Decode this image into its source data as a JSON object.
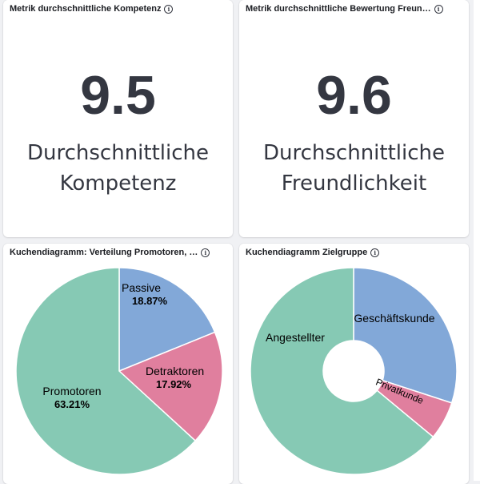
{
  "panels": {
    "metric_competence": {
      "title": "Metrik durchschnittliche Kompetenz",
      "value": "9.5",
      "label_line1": "Durchschnittliche",
      "label_line2": "Kompetenz"
    },
    "metric_friendliness": {
      "title": "Metrik durchschnittliche Bewertung Freun…",
      "value": "9.6",
      "label_line1": "Durchschnittliche",
      "label_line2": "Freundlichkeit"
    },
    "pie_promoters": {
      "title": "Kuchendiagramm: Verteilung Promotoren, …"
    },
    "pie_target_group": {
      "title": "Kuchendiagramm Zielgruppe"
    }
  },
  "info_icon": "info-circle-icon",
  "chart_data": [
    {
      "type": "pie",
      "labels": [
        "Passive",
        "Detraktoren",
        "Promotoren"
      ],
      "values": [
        18.87,
        17.92,
        63.21
      ],
      "value_labels": [
        "18.87%",
        "17.92%",
        "63.21%"
      ],
      "colors": [
        "#82a8d8",
        "#e07f9e",
        "#86c9b4"
      ]
    },
    {
      "type": "pie",
      "donut": true,
      "labels": [
        "Geschäftskunde",
        "Privatkunde",
        "Angestellter"
      ],
      "values": [
        30,
        6,
        64
      ],
      "colors": [
        "#82a8d8",
        "#e07f9e",
        "#86c9b4"
      ]
    }
  ]
}
